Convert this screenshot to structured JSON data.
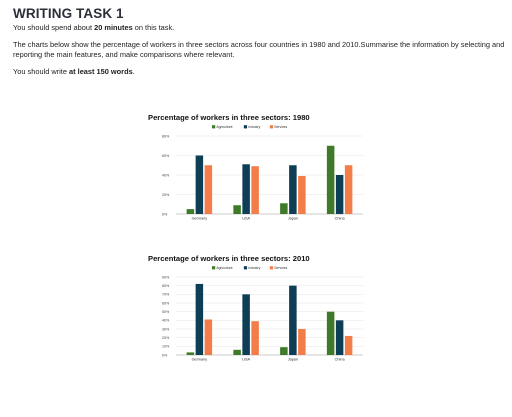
{
  "task": {
    "heading": "WRITING TASK 1",
    "time_pre": "You should spend about ",
    "time_bold": "20 minutes",
    "time_post": " on this task.",
    "prompt_line1": "The charts below show the percentage of workers in three sectors across four countries in 1980 and 2010.Summarise the information by selecting and",
    "prompt_line2": "reporting the main features, and make comparisons where relevant.",
    "words_pre": "You should write ",
    "words_bold": "at least 150 words",
    "words_post": "."
  },
  "colors": {
    "agriculture": "#3f7a28",
    "industry": "#0d3e56",
    "services": "#f37d49",
    "grid": "#e3e3e3",
    "axis": "#999999"
  },
  "chart_data": [
    {
      "type": "bar",
      "title": "Percentage of workers in three sectors: 1980",
      "categories": [
        "Germany",
        "USA",
        "Japan",
        "China"
      ],
      "series": [
        {
          "name": "Agriculture",
          "values": [
            5,
            9,
            11,
            70
          ]
        },
        {
          "name": "Industry",
          "values": [
            60,
            51,
            50,
            40
          ]
        },
        {
          "name": "Services",
          "values": [
            50,
            49,
            39,
            50
          ]
        }
      ],
      "yticks": [
        "0%",
        "20%",
        "40%",
        "60%",
        "80%"
      ],
      "ylim": [
        0,
        80
      ],
      "grid": true,
      "legend_position": "top"
    },
    {
      "type": "bar",
      "title": "Percentage of workers in three sectors: 2010",
      "categories": [
        "Germany",
        "USA",
        "Japan",
        "China"
      ],
      "series": [
        {
          "name": "Agriculture",
          "values": [
            3,
            6,
            9,
            50
          ]
        },
        {
          "name": "Industry",
          "values": [
            82,
            70,
            80,
            40
          ]
        },
        {
          "name": "Services",
          "values": [
            41,
            39,
            30,
            22
          ]
        }
      ],
      "yticks": [
        "0%",
        "10%",
        "20%",
        "30%",
        "40%",
        "50%",
        "60%",
        "70%",
        "80%",
        "90%"
      ],
      "ylim": [
        0,
        90
      ],
      "grid": true,
      "legend_position": "top"
    }
  ]
}
